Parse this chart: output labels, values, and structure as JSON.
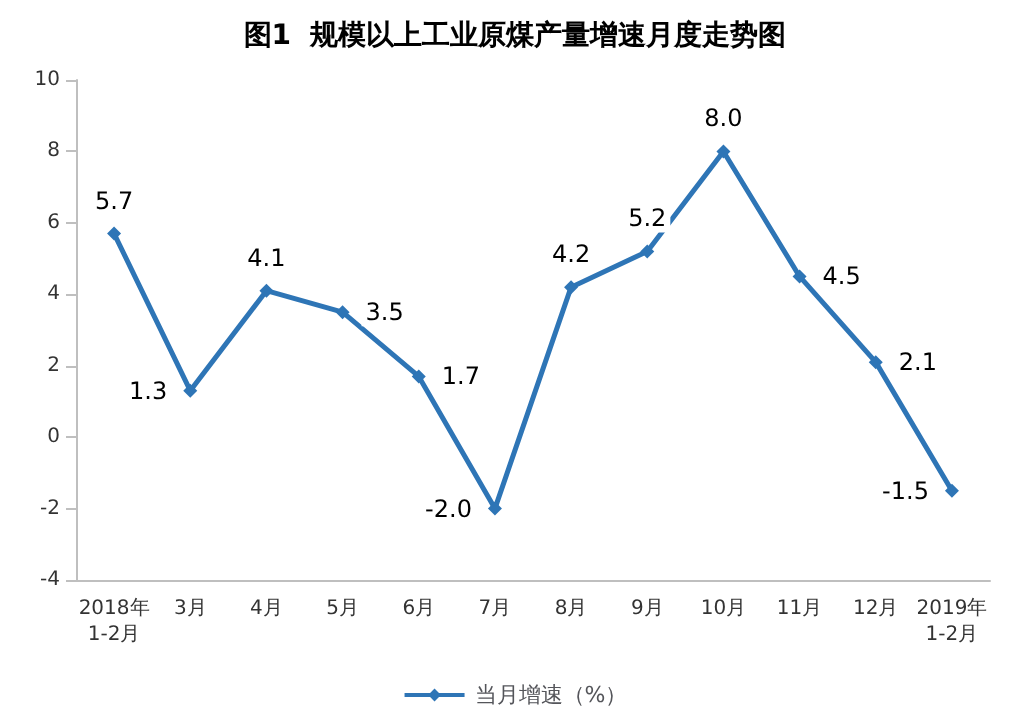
{
  "chart_data": {
    "type": "line",
    "title": "图1  规模以上工业原煤产量增速月度走势图",
    "categories": [
      "2018年\n1-2月",
      "3月",
      "4月",
      "5月",
      "6月",
      "7月",
      "8月",
      "9月",
      "10月",
      "11月",
      "12月",
      "2019年\n1-2月"
    ],
    "series": [
      {
        "name": "当月增速（%）",
        "color": "#2e75b6",
        "values": [
          5.7,
          1.3,
          4.1,
          3.5,
          1.7,
          -2.0,
          4.2,
          5.2,
          8.0,
          4.5,
          2.1,
          -1.5
        ],
        "value_labels": [
          "5.7",
          "1.3",
          "4.1",
          "3.5",
          "1.7",
          "-2.0",
          "4.2",
          "5.2",
          "8.0",
          "4.5",
          "2.1",
          "-1.5"
        ]
      }
    ],
    "ylim": [
      -4,
      10
    ],
    "yticks": [
      -4,
      -2,
      0,
      2,
      4,
      6,
      8,
      10
    ],
    "grid": false,
    "legend": "bottom",
    "marker": "diamond",
    "line_style": "solid"
  }
}
